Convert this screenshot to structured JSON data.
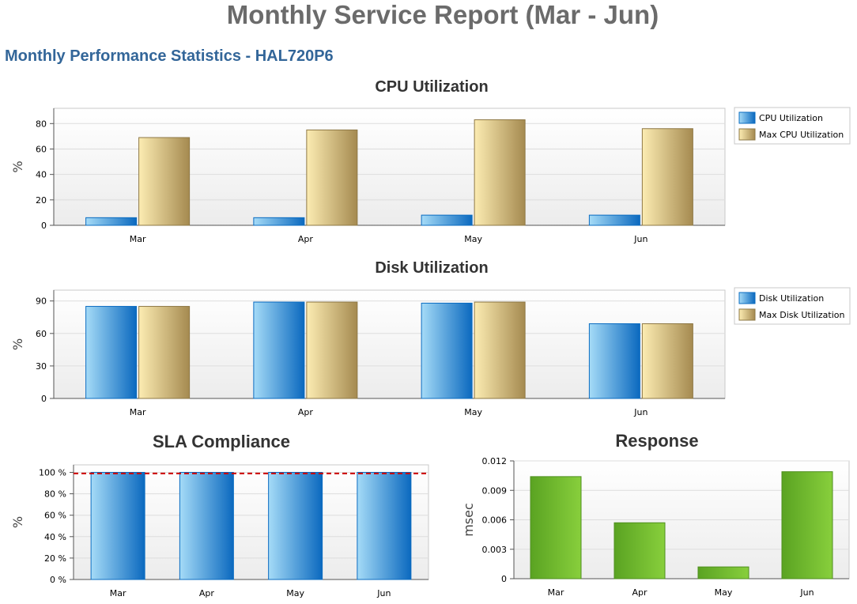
{
  "report": {
    "title": "Monthly Service Report (Mar - Jun)",
    "subtitle": "Monthly Performance Statistics - HAL720P6"
  },
  "colors": {
    "blue_light": "#9ad4f5",
    "blue_dark": "#0b6cc1",
    "gold_light": "#fbe9aa",
    "gold_dark": "#a88c52",
    "green_light": "#84cc3a",
    "green_dark": "#5aa322",
    "sla_line": "#cc0000",
    "title": "#6b6b6b",
    "subtitle": "#336699"
  },
  "chart_data": [
    {
      "id": "cpu",
      "type": "bar",
      "title": "CPU Utilization",
      "ylabel": "%",
      "categories": [
        "Mar",
        "Apr",
        "May",
        "Jun"
      ],
      "series": [
        {
          "name": "CPU Utilization",
          "values": [
            6,
            6,
            8,
            8
          ],
          "color": "blue"
        },
        {
          "name": "Max CPU Utilization",
          "values": [
            69,
            75,
            83,
            76
          ],
          "color": "gold"
        }
      ],
      "ylim": [
        0,
        92
      ],
      "yticks": [
        "0",
        "20",
        "40",
        "60",
        "80"
      ],
      "ytick_values": [
        0,
        20,
        40,
        60,
        80
      ],
      "legend": "right",
      "grid": true
    },
    {
      "id": "disk",
      "type": "bar",
      "title": "Disk Utilization",
      "ylabel": "%",
      "categories": [
        "Mar",
        "Apr",
        "May",
        "Jun"
      ],
      "series": [
        {
          "name": "Disk Utilization",
          "values": [
            85,
            89,
            88,
            69
          ],
          "color": "blue"
        },
        {
          "name": "Max Disk Utilization",
          "values": [
            85,
            89,
            89,
            69
          ],
          "color": "gold"
        }
      ],
      "ylim": [
        0,
        100
      ],
      "yticks": [
        "0",
        "30",
        "60",
        "90"
      ],
      "ytick_values": [
        0,
        30,
        60,
        90
      ],
      "legend": "right",
      "grid": true
    },
    {
      "id": "sla",
      "type": "bar",
      "title": "SLA Compliance",
      "ylabel": "%",
      "categories": [
        "Mar",
        "Apr",
        "May",
        "Jun"
      ],
      "series": [
        {
          "values": [
            100,
            100,
            100,
            100
          ],
          "color": "blue"
        }
      ],
      "target": 99,
      "ylim": [
        0,
        107
      ],
      "yticks": [
        "0 %",
        "20 %",
        "40 %",
        "60 %",
        "80 %",
        "100 %"
      ],
      "ytick_values": [
        0,
        20,
        40,
        60,
        80,
        100
      ],
      "grid": true
    },
    {
      "id": "response",
      "type": "bar",
      "title": "Response",
      "ylabel": "msec",
      "categories": [
        "Mar",
        "Apr",
        "May",
        "Jun"
      ],
      "series": [
        {
          "values": [
            0.0104,
            0.0057,
            0.0012,
            0.0109
          ],
          "color": "green"
        }
      ],
      "ylim": [
        0,
        0.012
      ],
      "yticks": [
        "0",
        "0.003",
        "0.006",
        "0.009",
        "0.012"
      ],
      "ytick_values": [
        0,
        0.003,
        0.006,
        0.009,
        0.012
      ],
      "grid": true
    }
  ]
}
